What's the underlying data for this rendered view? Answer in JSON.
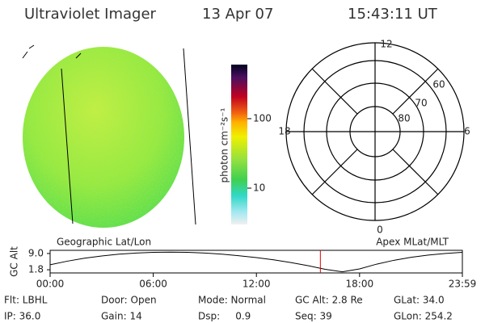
{
  "header": {
    "title": "Ultraviolet Imager",
    "date": "13 Apr 07",
    "time": "15:43:11 UT"
  },
  "colorbar": {
    "label": "photon cm⁻²s⁻¹",
    "range": [
      3,
      600
    ],
    "ticks": [
      10,
      100
    ],
    "log": true
  },
  "polar": {
    "mlt_labels": [
      "12",
      "18",
      "6",
      "0"
    ],
    "lat_labels": [
      "60",
      "70",
      "80"
    ]
  },
  "orbit_plot": {
    "left_label": "Geographic Lat/Lon",
    "right_label": "Apex MLat/MLT",
    "ylabel": "GC Alt",
    "x": [
      0,
      1,
      2,
      3,
      4,
      5,
      6,
      7,
      8,
      9,
      10,
      11,
      12,
      13,
      14,
      15,
      16,
      17,
      18,
      19,
      20,
      21,
      22,
      23,
      23.98
    ],
    "values": [
      4.0,
      5.6,
      6.9,
      7.9,
      8.7,
      9.2,
      9.5,
      9.6,
      9.5,
      9.2,
      8.7,
      8.0,
      7.2,
      6.2,
      5.0,
      3.6,
      2.0,
      0.9,
      2.2,
      4.3,
      6.0,
      7.3,
      8.3,
      9.0,
      9.5
    ],
    "color": "#000000",
    "marker_x": 15.72,
    "marker_color": "#e00000",
    "xlim": [
      0,
      23.98
    ],
    "ylim": [
      0.4,
      10.4
    ],
    "xticks": [
      {
        "value": 0,
        "label": "00:00"
      },
      {
        "value": 6,
        "label": "06:00"
      },
      {
        "value": 12,
        "label": "12:00"
      },
      {
        "value": 18,
        "label": "18:00"
      },
      {
        "value": 23.98,
        "label": "23:59"
      }
    ],
    "yticks": [
      1.8,
      {
        "value": 9.0,
        "label": "9.0"
      }
    ]
  },
  "status": [
    [
      "Flt: LBHL",
      "Door: Open",
      "Mode: Normal",
      "GC Alt: 2.8 Re",
      "GLat: 34.0"
    ],
    [
      "IP: 36.0",
      "Gain: 14",
      "Dsp:     0.9",
      "Seq: 39",
      "GLon: 254.2"
    ]
  ]
}
